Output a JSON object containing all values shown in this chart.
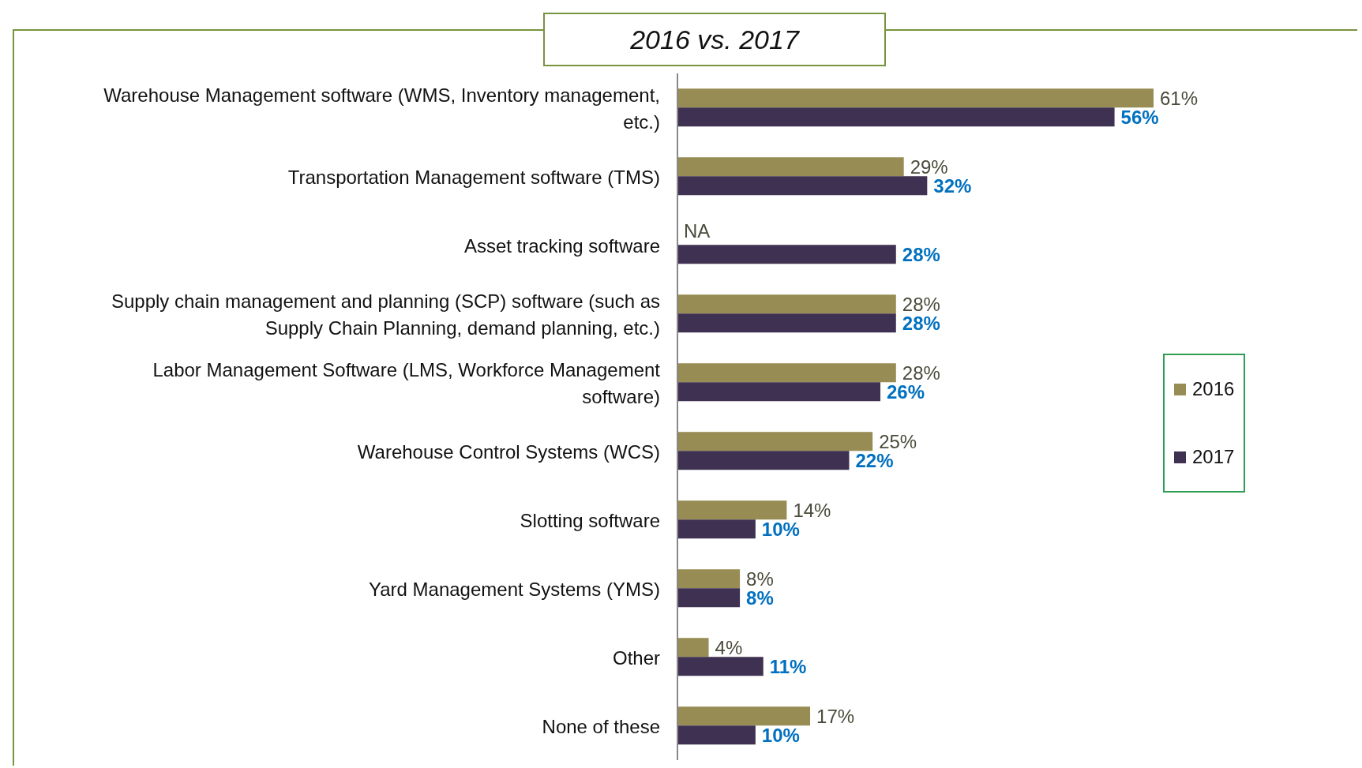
{
  "chart_data": {
    "type": "bar",
    "orientation": "horizontal",
    "title": "2016 vs. 2017",
    "categories": [
      "Warehouse Management software (WMS, Inventory management, etc.)",
      "Transportation Management software (TMS)",
      "Asset tracking software",
      "Supply chain management and planning (SCP) software (such as Supply Chain Planning, demand planning, etc.)",
      "Labor Management Software (LMS, Workforce Management software)",
      "Warehouse Control Systems (WCS)",
      "Slotting software",
      "Yard Management Systems (YMS)",
      "Other",
      "None of these"
    ],
    "series": [
      {
        "name": "2016",
        "color": "#968c54",
        "values": [
          61,
          29,
          null,
          28,
          28,
          25,
          14,
          8,
          4,
          17
        ],
        "value_labels": [
          "61%",
          "29%",
          "NA",
          "28%",
          "28%",
          "25%",
          "14%",
          "8%",
          "4%",
          "17%"
        ]
      },
      {
        "name": "2017",
        "color": "#3f3151",
        "values": [
          56,
          32,
          28,
          28,
          26,
          22,
          10,
          8,
          11,
          10
        ],
        "value_labels": [
          "56%",
          "32%",
          "28%",
          "28%",
          "26%",
          "22%",
          "10%",
          "8%",
          "11%",
          "10%"
        ]
      }
    ],
    "legend": "right"
  }
}
